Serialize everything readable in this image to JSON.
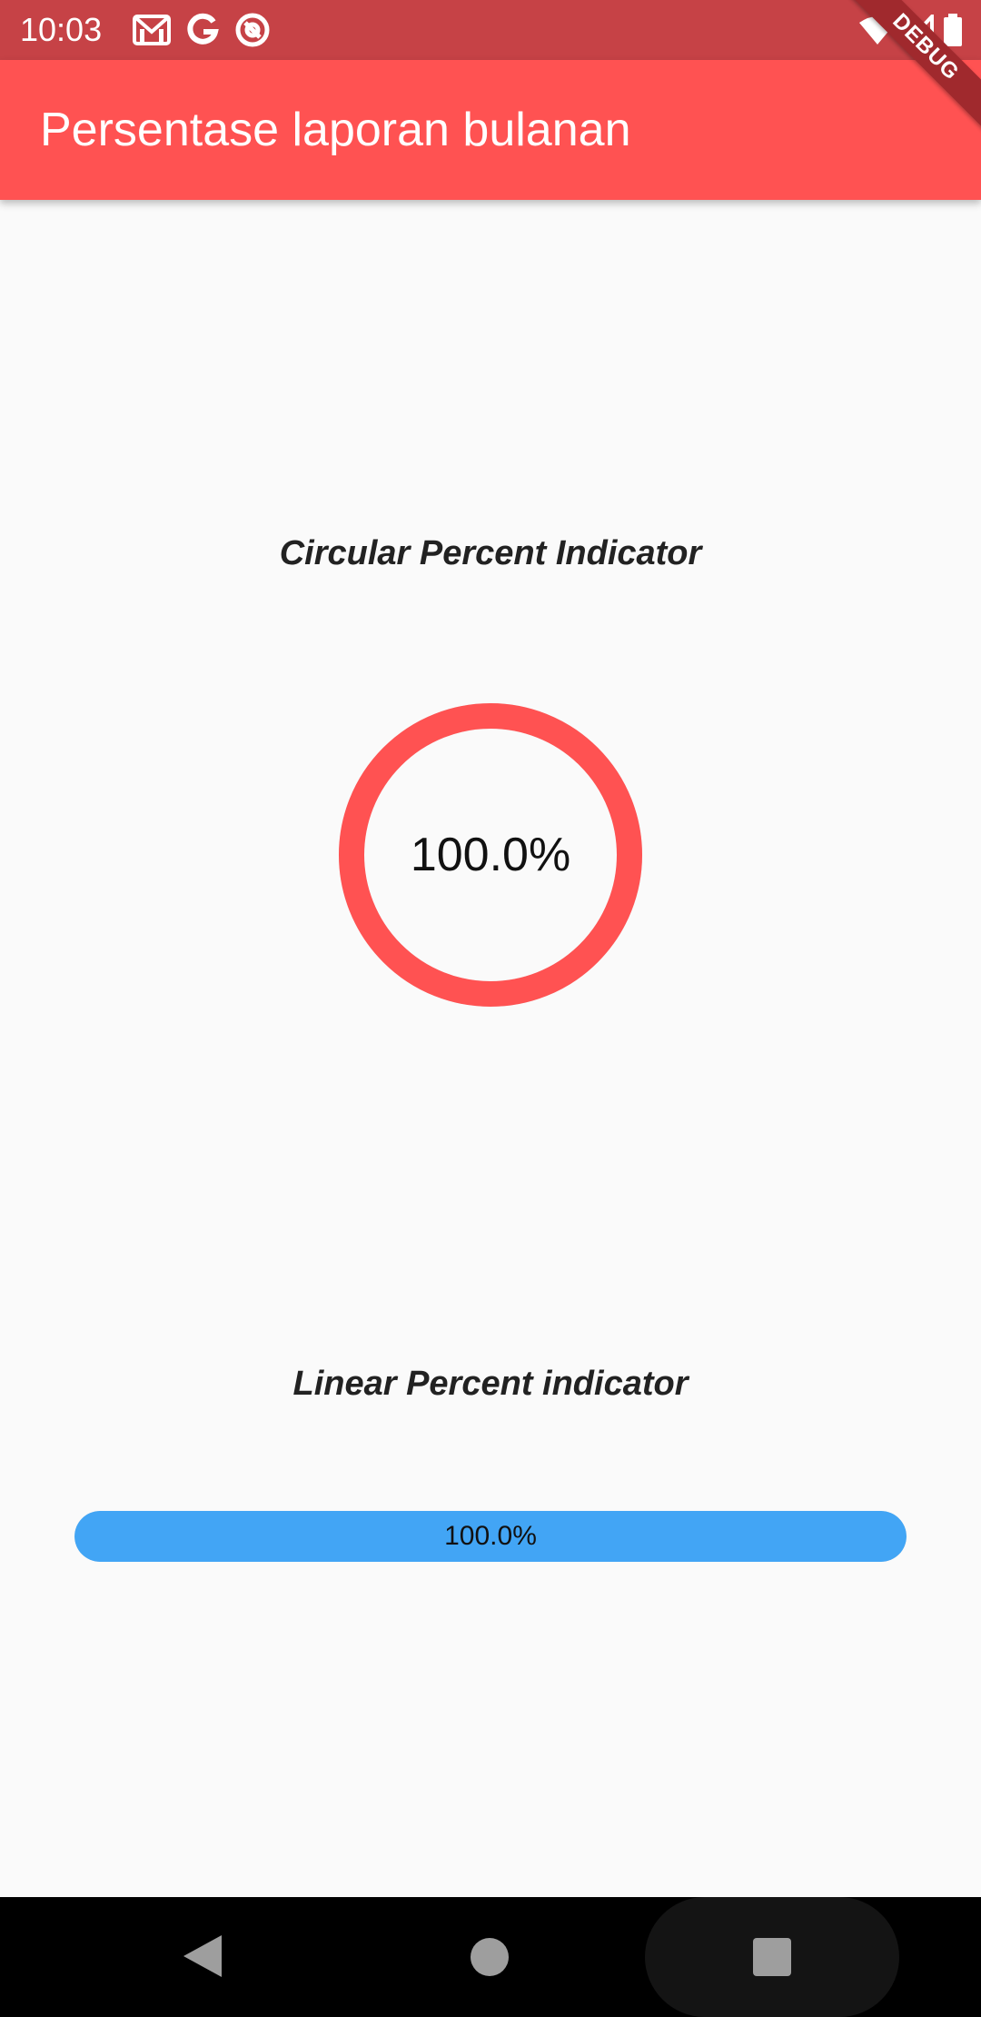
{
  "status_bar": {
    "time": "10:03",
    "left_icons": [
      "gmail-icon",
      "google-icon",
      "at-sign-icon"
    ],
    "right_icons": [
      "wifi-icon",
      "signal-icon",
      "battery-icon"
    ],
    "background_color": "#c64246"
  },
  "debug_banner": {
    "label": "DEBUG"
  },
  "app_bar": {
    "title": "Persentase laporan bulanan",
    "background_color": "#ff5252"
  },
  "circular_section": {
    "title": "Circular Percent Indicator",
    "percent": 1.0,
    "label": "100.0%",
    "progress_color": "#ff5252"
  },
  "linear_section": {
    "title": "Linear Percent indicator",
    "percent": 1.0,
    "label": "100.0%",
    "progress_color": "#42a5f5"
  },
  "nav_bar": {
    "buttons": [
      "back-icon",
      "home-icon",
      "recents-icon"
    ]
  }
}
